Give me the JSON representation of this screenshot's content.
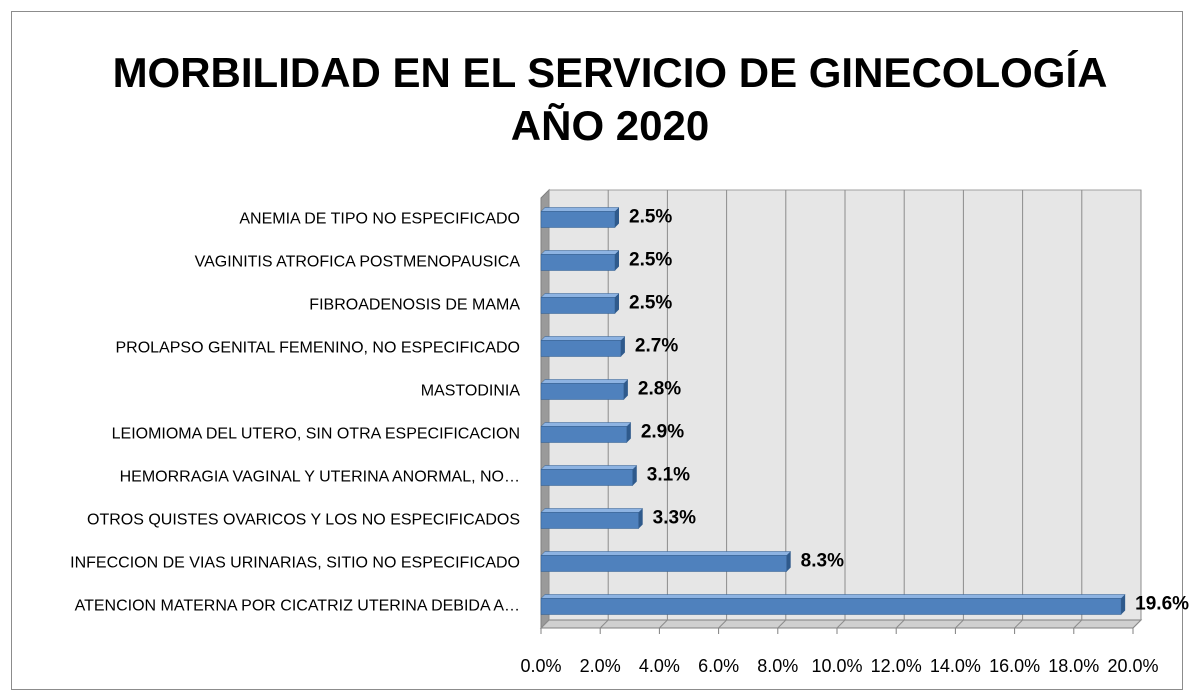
{
  "chart_data": {
    "type": "bar3d_horizontal",
    "title": [
      "MORBILIDAD EN EL SERVICIO DE GINECOLOGÍA",
      "AÑO 2020"
    ],
    "categories": [
      "ANEMIA DE TIPO NO ESPECIFICADO",
      "VAGINITIS ATROFICA POSTMENOPAUSICA",
      "FIBROADENOSIS DE MAMA",
      "PROLAPSO GENITAL FEMENINO, NO ESPECIFICADO",
      "MASTODINIA",
      "LEIOMIOMA DEL UTERO, SIN OTRA ESPECIFICACION",
      "HEMORRAGIA VAGINAL Y UTERINA ANORMAL, NO…",
      "OTROS QUISTES OVARICOS Y LOS NO ESPECIFICADOS",
      "INFECCION DE VIAS URINARIAS, SITIO NO ESPECIFICADO",
      "ATENCION MATERNA POR CICATRIZ UTERINA DEBIDA A…"
    ],
    "values": [
      2.5,
      2.5,
      2.5,
      2.7,
      2.8,
      2.9,
      3.1,
      3.3,
      8.3,
      19.6
    ],
    "value_labels": [
      "2.5%",
      "2.5%",
      "2.5%",
      "2.7%",
      "2.8%",
      "2.9%",
      "3.1%",
      "3.3%",
      "8.3%",
      "19.6%"
    ],
    "color": "#4f81bd",
    "xlim": [
      0,
      20
    ],
    "xticks": [
      {
        "value": 0,
        "label": "0.0%"
      },
      {
        "value": 2,
        "label": "2.0%"
      },
      {
        "value": 4,
        "label": "4.0%"
      },
      {
        "value": 6,
        "label": "6.0%"
      },
      {
        "value": 8,
        "label": "8.0%"
      },
      {
        "value": 10,
        "label": "10.0%"
      },
      {
        "value": 12,
        "label": "12.0%"
      },
      {
        "value": 14,
        "label": "14.0%"
      },
      {
        "value": 16,
        "label": "16.0%"
      },
      {
        "value": 18,
        "label": "18.0%"
      },
      {
        "value": 20,
        "label": "20.0%"
      }
    ],
    "grid": true
  }
}
